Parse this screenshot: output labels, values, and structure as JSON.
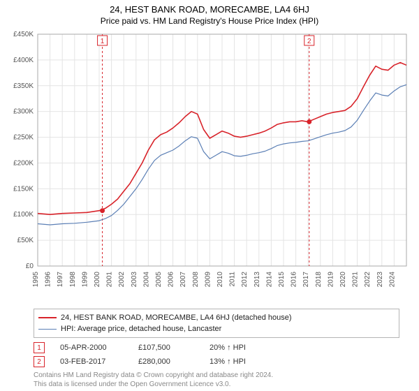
{
  "title": "24, HEST BANK ROAD, MORECAMBE, LA4 6HJ",
  "subtitle": "Price paid vs. HM Land Registry's House Price Index (HPI)",
  "chart": {
    "type": "line",
    "background_color": "#ffffff",
    "grid_color": "#e4e4e4",
    "axis_color": "#a8a8a8",
    "tick_font_size": 10,
    "tick_color": "#555555",
    "x_years": [
      1995,
      1996,
      1997,
      1998,
      1999,
      2000,
      2001,
      2002,
      2003,
      2004,
      2005,
      2006,
      2007,
      2008,
      2009,
      2010,
      2011,
      2012,
      2013,
      2014,
      2015,
      2016,
      2017,
      2018,
      2019,
      2020,
      2021,
      2022,
      2023,
      2024
    ],
    "y_ticks": [
      0,
      50000,
      100000,
      150000,
      200000,
      250000,
      300000,
      350000,
      400000,
      450000
    ],
    "y_tick_labels": [
      "£0",
      "£50K",
      "£100K",
      "£150K",
      "£200K",
      "£250K",
      "£300K",
      "£350K",
      "£400K",
      "£450K"
    ],
    "ylim": [
      0,
      450000
    ],
    "xlim": [
      1995,
      2025
    ],
    "series": [
      {
        "name": "24, HEST BANK ROAD, MORECAMBE, LA4 6HJ (detached house)",
        "color": "#d8232a",
        "line_width": 1.6,
        "data": [
          [
            1995,
            102000
          ],
          [
            1996,
            100000
          ],
          [
            1997,
            102000
          ],
          [
            1998,
            103000
          ],
          [
            1999,
            104000
          ],
          [
            2000,
            107500
          ],
          [
            2000.5,
            112000
          ],
          [
            2001,
            120000
          ],
          [
            2001.5,
            130000
          ],
          [
            2002,
            145000
          ],
          [
            2002.5,
            160000
          ],
          [
            2003,
            180000
          ],
          [
            2003.5,
            200000
          ],
          [
            2004,
            225000
          ],
          [
            2004.5,
            245000
          ],
          [
            2005,
            255000
          ],
          [
            2005.5,
            260000
          ],
          [
            2006,
            268000
          ],
          [
            2006.5,
            278000
          ],
          [
            2007,
            290000
          ],
          [
            2007.5,
            300000
          ],
          [
            2008,
            295000
          ],
          [
            2008.5,
            265000
          ],
          [
            2009,
            248000
          ],
          [
            2009.5,
            255000
          ],
          [
            2010,
            262000
          ],
          [
            2010.5,
            258000
          ],
          [
            2011,
            252000
          ],
          [
            2011.5,
            250000
          ],
          [
            2012,
            252000
          ],
          [
            2012.5,
            255000
          ],
          [
            2013,
            258000
          ],
          [
            2013.5,
            262000
          ],
          [
            2014,
            268000
          ],
          [
            2014.5,
            275000
          ],
          [
            2015,
            278000
          ],
          [
            2015.5,
            280000
          ],
          [
            2016,
            280000
          ],
          [
            2016.5,
            282000
          ],
          [
            2017,
            280000
          ],
          [
            2017.5,
            285000
          ],
          [
            2018,
            290000
          ],
          [
            2018.5,
            295000
          ],
          [
            2019,
            298000
          ],
          [
            2019.5,
            300000
          ],
          [
            2020,
            302000
          ],
          [
            2020.5,
            310000
          ],
          [
            2021,
            325000
          ],
          [
            2021.5,
            348000
          ],
          [
            2022,
            370000
          ],
          [
            2022.5,
            388000
          ],
          [
            2023,
            382000
          ],
          [
            2023.5,
            380000
          ],
          [
            2024,
            390000
          ],
          [
            2024.5,
            395000
          ],
          [
            2025,
            390000
          ]
        ]
      },
      {
        "name": "HPI: Average price, detached house, Lancaster",
        "color": "#5b7fb5",
        "line_width": 1.2,
        "data": [
          [
            1995,
            82000
          ],
          [
            1996,
            80000
          ],
          [
            1997,
            82000
          ],
          [
            1998,
            83000
          ],
          [
            1999,
            85000
          ],
          [
            2000,
            88000
          ],
          [
            2000.5,
            92000
          ],
          [
            2001,
            98000
          ],
          [
            2001.5,
            108000
          ],
          [
            2002,
            120000
          ],
          [
            2002.5,
            135000
          ],
          [
            2003,
            150000
          ],
          [
            2003.5,
            168000
          ],
          [
            2004,
            188000
          ],
          [
            2004.5,
            205000
          ],
          [
            2005,
            215000
          ],
          [
            2005.5,
            220000
          ],
          [
            2006,
            225000
          ],
          [
            2006.5,
            233000
          ],
          [
            2007,
            243000
          ],
          [
            2007.5,
            251000
          ],
          [
            2008,
            248000
          ],
          [
            2008.5,
            222000
          ],
          [
            2009,
            208000
          ],
          [
            2009.5,
            215000
          ],
          [
            2010,
            222000
          ],
          [
            2010.5,
            219000
          ],
          [
            2011,
            214000
          ],
          [
            2011.5,
            213000
          ],
          [
            2012,
            215000
          ],
          [
            2012.5,
            218000
          ],
          [
            2013,
            220000
          ],
          [
            2013.5,
            223000
          ],
          [
            2014,
            228000
          ],
          [
            2014.5,
            234000
          ],
          [
            2015,
            237000
          ],
          [
            2015.5,
            239000
          ],
          [
            2016,
            240000
          ],
          [
            2016.5,
            242000
          ],
          [
            2017,
            243000
          ],
          [
            2017.5,
            247000
          ],
          [
            2018,
            251000
          ],
          [
            2018.5,
            255000
          ],
          [
            2019,
            258000
          ],
          [
            2019.5,
            260000
          ],
          [
            2020,
            263000
          ],
          [
            2020.5,
            270000
          ],
          [
            2021,
            283000
          ],
          [
            2021.5,
            302000
          ],
          [
            2022,
            320000
          ],
          [
            2022.5,
            336000
          ],
          [
            2023,
            332000
          ],
          [
            2023.5,
            330000
          ],
          [
            2024,
            340000
          ],
          [
            2024.5,
            348000
          ],
          [
            2025,
            352000
          ]
        ]
      }
    ],
    "sale_markers": [
      {
        "n": "1",
        "year": 2000.26,
        "price": 107500,
        "color": "#d8232a"
      },
      {
        "n": "2",
        "year": 2017.09,
        "price": 280000,
        "color": "#d8232a"
      }
    ]
  },
  "legend": {
    "border_color": "#b5b5b5",
    "items": [
      {
        "color": "#d8232a",
        "width": 2,
        "label": "24, HEST BANK ROAD, MORECAMBE, LA4 6HJ (detached house)"
      },
      {
        "color": "#5b7fb5",
        "width": 1,
        "label": "HPI: Average price, detached house, Lancaster"
      }
    ]
  },
  "sales": [
    {
      "n": "1",
      "color": "#d8232a",
      "date": "05-APR-2000",
      "price": "£107,500",
      "pct": "20% ↑ HPI"
    },
    {
      "n": "2",
      "color": "#d8232a",
      "date": "03-FEB-2017",
      "price": "£280,000",
      "pct": "13% ↑ HPI"
    }
  ],
  "footer": {
    "line1": "Contains HM Land Registry data © Crown copyright and database right 2024.",
    "line2": "This data is licensed under the Open Government Licence v3.0."
  }
}
